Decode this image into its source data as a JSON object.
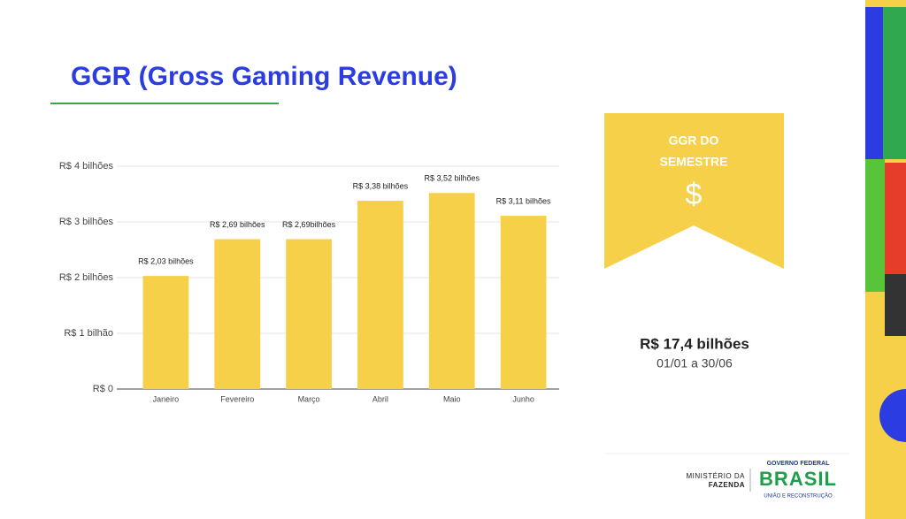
{
  "header": {
    "title": "GGR (Gross Gaming Revenue)"
  },
  "chart_data": {
    "type": "bar",
    "categories": [
      "Janeiro",
      "Fevereiro",
      "Março",
      "Abril",
      "Maio",
      "Junho"
    ],
    "values": [
      2.03,
      2.69,
      2.69,
      3.38,
      3.52,
      3.11
    ],
    "value_labels": [
      "R$ 2,03 bilhões",
      "R$ 2,69 bilhões",
      "R$ 2,69bilhões",
      "R$ 3,38 bilhões",
      "R$ 3,52 bilhões",
      "R$ 3,11 bilhões"
    ],
    "color": "#f7d04a",
    "ylim": [
      0,
      4
    ],
    "yticks": [
      {
        "value": 0,
        "label": "R$ 0"
      },
      {
        "value": 1,
        "label": "R$ 1 bilhão"
      },
      {
        "value": 2,
        "label": "R$ 2 bilhões"
      },
      {
        "value": 3,
        "label": "R$ 3 bilhões"
      },
      {
        "value": 4,
        "label": "R$ 4 bilhões"
      }
    ],
    "grid": true
  },
  "side_panel": {
    "banner_line1": "GGR DO",
    "banner_line2": "SEMESTRE",
    "icon": "$",
    "total": "R$ 17,4 bilhões",
    "period": "01/01 a 30/06"
  },
  "footer": {
    "ministry_line1": "MINISTÉRIO DA",
    "ministry_line2": "FAZENDA",
    "gov": "GOVERNO FEDERAL",
    "brand": "BRASIL",
    "motto": "UNIÃO E RECONSTRUÇÃO"
  }
}
